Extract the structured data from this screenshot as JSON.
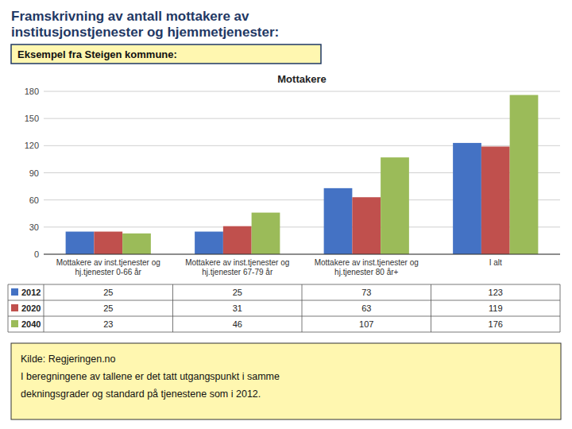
{
  "title": "Framskrivning av antall mottakere av\ninstitusjonstjenester og hjemmetjenester:",
  "subtitle": "Eksempel fra Steigen kommune:",
  "annotations": [
    "Kilde: Regjeringen.no\nI beregningene av tallene er det tatt utgangspunkt i samme\ndekningsgrader og standard på tjenestene som i 2012."
  ],
  "chart_data": {
    "type": "bar",
    "title": "Mottakere",
    "categories": [
      "Mottakere av inst.tjenester og\nhj.tjenester 0-66 år",
      "Mottakere av inst.tjenester og\nhj.tjenester 67-79 år",
      "Mottakere av inst.tjenester og\nhj.tjenester 80 år+",
      "I alt"
    ],
    "series": [
      {
        "name": "2012",
        "color": "#4472C4",
        "values": [
          25,
          25,
          73,
          123
        ]
      },
      {
        "name": "2020",
        "color": "#C0504D",
        "values": [
          25,
          31,
          63,
          119
        ]
      },
      {
        "name": "2040",
        "color": "#9BBB59",
        "values": [
          23,
          46,
          107,
          176
        ]
      }
    ],
    "ylim": [
      0,
      180
    ],
    "yticks": [
      0,
      30,
      60,
      90,
      120,
      150,
      180
    ],
    "grid": true
  }
}
